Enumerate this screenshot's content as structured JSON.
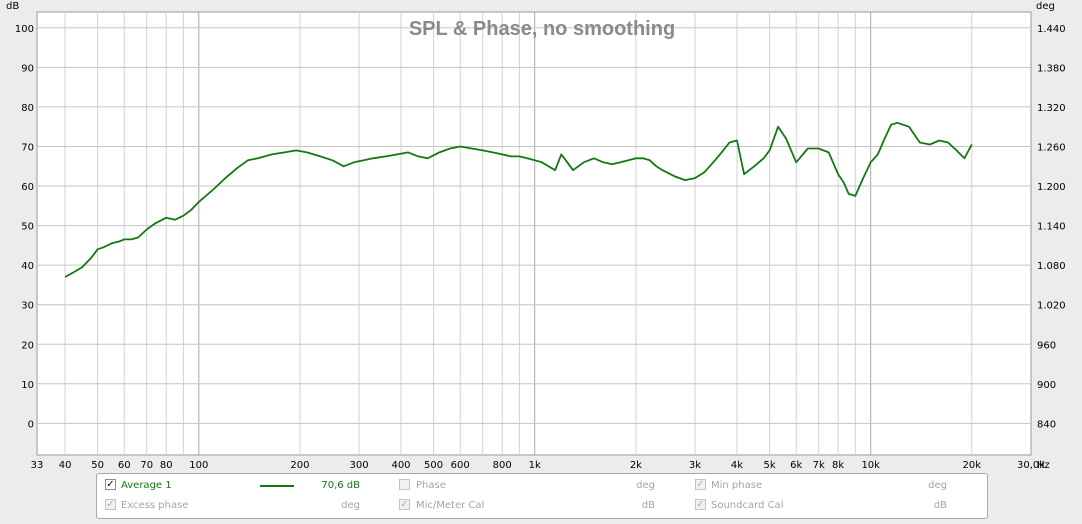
{
  "chart_data": {
    "type": "line",
    "title": "SPL & Phase, no smoothing",
    "y_left_unit": "dB",
    "y_right_unit": "deg",
    "x_unit": "Hz",
    "x_scale": "log",
    "xlim": [
      33,
      30000
    ],
    "ylim": [
      -8,
      104
    ],
    "y_left_ticks": [
      0,
      10,
      20,
      30,
      40,
      50,
      60,
      70,
      80,
      90,
      100
    ],
    "y_right_ticks": [
      "840",
      "900",
      "960",
      "1.020",
      "1.080",
      "1.140",
      "1.200",
      "1.260",
      "1.320",
      "1.380",
      "1.440"
    ],
    "x_ticks": [
      {
        "v": 33,
        "label": "33"
      },
      {
        "v": 40,
        "label": "40"
      },
      {
        "v": 50,
        "label": "50"
      },
      {
        "v": 60,
        "label": "60"
      },
      {
        "v": 70,
        "label": "70"
      },
      {
        "v": 80,
        "label": "80"
      },
      {
        "v": 100,
        "label": "100"
      },
      {
        "v": 200,
        "label": "200"
      },
      {
        "v": 300,
        "label": "300"
      },
      {
        "v": 400,
        "label": "400"
      },
      {
        "v": 500,
        "label": "500"
      },
      {
        "v": 600,
        "label": "600"
      },
      {
        "v": 800,
        "label": "800"
      },
      {
        "v": 1000,
        "label": "1k"
      },
      {
        "v": 2000,
        "label": "2k"
      },
      {
        "v": 3000,
        "label": "3k"
      },
      {
        "v": 4000,
        "label": "4k"
      },
      {
        "v": 5000,
        "label": "5k"
      },
      {
        "v": 6000,
        "label": "6k"
      },
      {
        "v": 7000,
        "label": "7k"
      },
      {
        "v": 8000,
        "label": "8k"
      },
      {
        "v": 10000,
        "label": "10k"
      },
      {
        "v": 20000,
        "label": "20k"
      },
      {
        "v": 30000,
        "label": "30,0k"
      }
    ],
    "series": [
      {
        "name": "Average 1",
        "color": "#137813",
        "x": [
          40,
          42,
          45,
          48,
          50,
          52,
          55,
          58,
          60,
          63,
          66,
          70,
          74,
          78,
          80,
          85,
          90,
          95,
          100,
          110,
          120,
          130,
          140,
          150,
          165,
          180,
          195,
          210,
          230,
          250,
          270,
          290,
          310,
          330,
          360,
          390,
          420,
          450,
          480,
          520,
          560,
          600,
          650,
          700,
          750,
          800,
          850,
          900,
          950,
          1000,
          1050,
          1100,
          1150,
          1200,
          1250,
          1300,
          1400,
          1500,
          1600,
          1700,
          1800,
          1900,
          2000,
          2100,
          2200,
          2300,
          2400,
          2600,
          2800,
          3000,
          3200,
          3400,
          3600,
          3800,
          4000,
          4200,
          4500,
          4800,
          5000,
          5300,
          5600,
          6000,
          6500,
          7000,
          7500,
          8000,
          8300,
          8600,
          9000,
          9500,
          10000,
          10500,
          11000,
          11500,
          12000,
          13000,
          14000,
          15000,
          16000,
          17000,
          18000,
          19000,
          20000
        ],
        "y": [
          37,
          38,
          39.5,
          42,
          44,
          44.5,
          45.5,
          46,
          46.5,
          46.5,
          47,
          49,
          50.5,
          51.5,
          52,
          51.5,
          52.5,
          54,
          56,
          59,
          62,
          64.5,
          66.5,
          67,
          68,
          68.5,
          69,
          68.5,
          67.5,
          66.5,
          65,
          66,
          66.5,
          67,
          67.5,
          68,
          68.5,
          67.5,
          67,
          68.5,
          69.5,
          70,
          69.5,
          69,
          68.5,
          68,
          67.5,
          67.5,
          67,
          66.5,
          66,
          65,
          64,
          68,
          66,
          64,
          66,
          67,
          66,
          65.5,
          66,
          66.5,
          67,
          67,
          66.5,
          65,
          64,
          62.5,
          61.5,
          62,
          63.5,
          66,
          68.5,
          71,
          71.5,
          63,
          65,
          67,
          69,
          75,
          72,
          66,
          69.5,
          69.5,
          68.5,
          63,
          61,
          58,
          57.5,
          62,
          66,
          68,
          72,
          75.5,
          76,
          75,
          71,
          70.5,
          71.5,
          71,
          69,
          67,
          70.5
        ]
      }
    ],
    "annotations": []
  },
  "legend": {
    "row1": [
      {
        "label": "Average 1",
        "checked": true,
        "enabled": true,
        "value": "70,6 dB"
      },
      {
        "label": "Phase",
        "checked": false,
        "enabled": false,
        "unit": "deg"
      },
      {
        "label": "Min phase",
        "checked": true,
        "enabled": false,
        "unit": "deg"
      }
    ],
    "row2": [
      {
        "label": "Excess phase",
        "checked": true,
        "enabled": false,
        "unit": "deg"
      },
      {
        "label": "Mic/Meter Cal",
        "checked": true,
        "enabled": false,
        "unit": "dB"
      },
      {
        "label": "Soundcard Cal",
        "checked": true,
        "enabled": false,
        "unit": "dB"
      }
    ],
    "checkmark": "✓"
  }
}
